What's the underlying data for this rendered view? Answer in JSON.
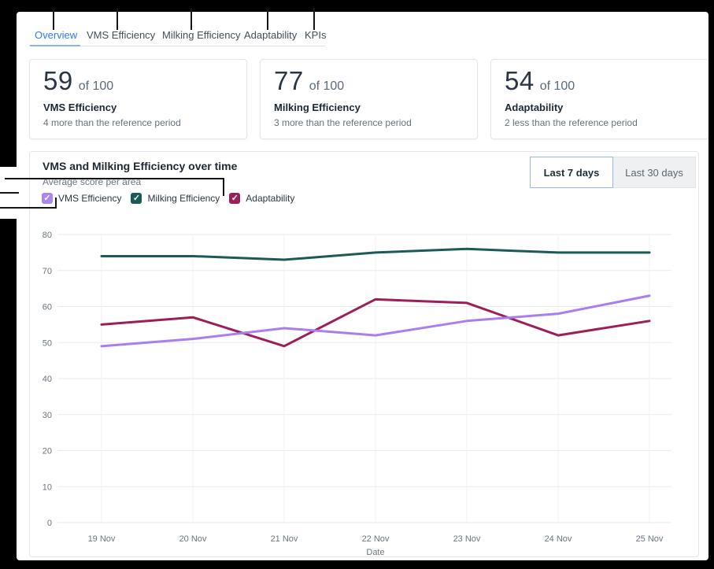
{
  "colors": {
    "accent_blue": "#337af0",
    "tab_underline": "#8cb4f4",
    "vms_purple": "#a97ef0",
    "milking_teal": "#1b5b55",
    "adaptability_maroon": "#9e1e58",
    "grid_horizontal": "#e8eaec",
    "grid_vertical": "#f1f2f4",
    "axis_text": "#6b7580",
    "annotation_line": "#151515"
  },
  "tabs": {
    "items": [
      {
        "label": "Overview",
        "active": true
      },
      {
        "label": "VMS Efficiency",
        "active": false
      },
      {
        "label": "Milking Efficiency",
        "active": false
      },
      {
        "label": "Adaptability",
        "active": false
      },
      {
        "label": "KPIs",
        "active": false
      }
    ]
  },
  "cards": [
    {
      "value": "59",
      "of_label": "of 100",
      "title": "VMS Efficiency",
      "subtitle": "4 more than the reference period"
    },
    {
      "value": "77",
      "of_label": "of 100",
      "title": "Milking Efficiency",
      "subtitle": "3 more than the reference period"
    },
    {
      "value": "54",
      "of_label": "of 100",
      "title": "Adaptability",
      "subtitle": "2 less than the reference period"
    }
  ],
  "chart_section": {
    "title": "VMS and Milking Efficiency over time",
    "subtitle": "Average score per area",
    "range_buttons": [
      {
        "label": "Last 7 days",
        "active": true
      },
      {
        "label": "Last 30 days",
        "active": false
      }
    ],
    "legend": [
      {
        "label": "VMS Efficiency",
        "checked": true,
        "color": "#ab85f1"
      },
      {
        "label": "Milking Efficiency",
        "checked": true,
        "color": "#1b5b55"
      },
      {
        "label": "Adaptability",
        "checked": true,
        "color": "#9e1e58"
      }
    ],
    "checkmark_glyph": "✓"
  },
  "chart_data": {
    "type": "line",
    "x": [
      "19 Nov",
      "20 Nov",
      "21 Nov",
      "22 Nov",
      "23 Nov",
      "24 Nov",
      "25 Nov"
    ],
    "series": [
      {
        "name": "VMS Efficiency",
        "color": "#a97ef0",
        "values": [
          49,
          51,
          54,
          52,
          56,
          58,
          63
        ]
      },
      {
        "name": "Milking Efficiency",
        "color": "#1b5b55",
        "values": [
          74,
          74,
          73,
          75,
          76,
          75,
          75
        ]
      },
      {
        "name": "Adaptability",
        "color": "#9e1e58",
        "values": [
          55,
          57,
          49,
          62,
          61,
          52,
          56
        ]
      }
    ],
    "xlabel": "Date",
    "ylabel": "",
    "ylim": [
      0,
      80
    ],
    "yticks": [
      0,
      10,
      20,
      30,
      40,
      50,
      60,
      70,
      80
    ],
    "grid": true,
    "legend_position": "top"
  }
}
